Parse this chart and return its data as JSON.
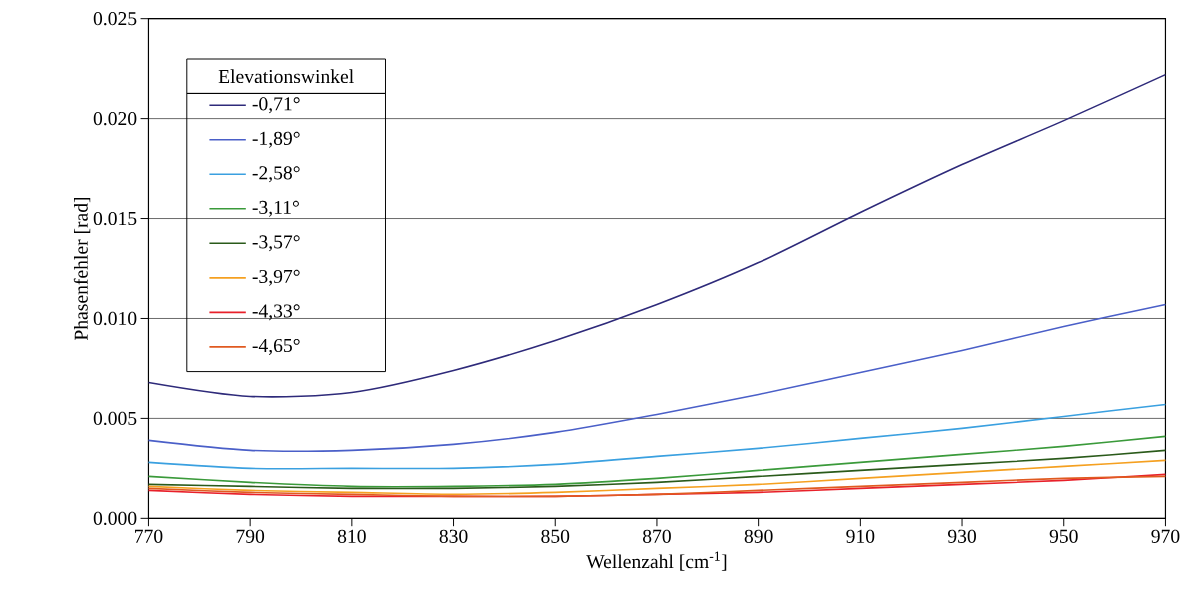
{
  "chart_data": {
    "type": "line",
    "xlabel": "Wellenzahl [cm$^{-1}$]",
    "ylabel": "Phasenfehler [rad]",
    "legend_title": "Elevationswinkel",
    "x": [
      770,
      790,
      810,
      830,
      850,
      870,
      890,
      910,
      930,
      950,
      970
    ],
    "series": [
      {
        "name": "-0,71°",
        "color": "#2e2a7a",
        "values": [
          0.0068,
          0.0061,
          0.0063,
          0.0074,
          0.0089,
          0.0107,
          0.0128,
          0.0153,
          0.0177,
          0.0199,
          0.0222
        ]
      },
      {
        "name": "-1,89°",
        "color": "#4a5fc8",
        "values": [
          0.0039,
          0.0034,
          0.0034,
          0.0037,
          0.0043,
          0.0052,
          0.0062,
          0.0073,
          0.0084,
          0.0096,
          0.0107
        ]
      },
      {
        "name": "-2,58°",
        "color": "#3aa0e0",
        "values": [
          0.0028,
          0.0025,
          0.0025,
          0.0025,
          0.0027,
          0.0031,
          0.0035,
          0.004,
          0.0045,
          0.0051,
          0.0057
        ]
      },
      {
        "name": "-3,11°",
        "color": "#3a9a3a",
        "values": [
          0.0021,
          0.0018,
          0.0016,
          0.0016,
          0.0017,
          0.002,
          0.0024,
          0.0028,
          0.0032,
          0.0036,
          0.0041
        ]
      },
      {
        "name": "-3,57°",
        "color": "#2a5a1a",
        "values": [
          0.0017,
          0.0016,
          0.0015,
          0.0015,
          0.0016,
          0.0018,
          0.0021,
          0.0024,
          0.0027,
          0.003,
          0.0034
        ]
      },
      {
        "name": "-3,97°",
        "color": "#f5a020",
        "values": [
          0.0016,
          0.0014,
          0.0013,
          0.0012,
          0.0013,
          0.0015,
          0.0017,
          0.002,
          0.0023,
          0.0026,
          0.0029
        ]
      },
      {
        "name": "-4,33°",
        "color": "#e8202a",
        "values": [
          0.0014,
          0.0012,
          0.0011,
          0.0011,
          0.0011,
          0.0012,
          0.0013,
          0.0015,
          0.0017,
          0.0019,
          0.0022
        ]
      },
      {
        "name": "-4,65°",
        "color": "#e05a20",
        "values": [
          0.0015,
          0.0013,
          0.0012,
          0.0011,
          0.0011,
          0.0012,
          0.0014,
          0.0016,
          0.0018,
          0.002,
          0.0021
        ]
      }
    ],
    "xlim": [
      770,
      970
    ],
    "xticks": [
      770,
      790,
      810,
      830,
      850,
      870,
      890,
      910,
      930,
      950,
      970
    ],
    "ylim": [
      0,
      0.025
    ],
    "yticks": [
      {
        "value": 0,
        "label": "0.000"
      },
      {
        "value": 0.005,
        "label": "0.005"
      },
      {
        "value": 0.01,
        "label": "0.010"
      },
      {
        "value": 0.015,
        "label": "0.015"
      },
      {
        "value": 0.02,
        "label": "0.020"
      },
      {
        "value": 0.025,
        "label": "0.025"
      }
    ],
    "grid": "y",
    "legend": "top left",
    "marker": "none",
    "line_style": "solid"
  }
}
